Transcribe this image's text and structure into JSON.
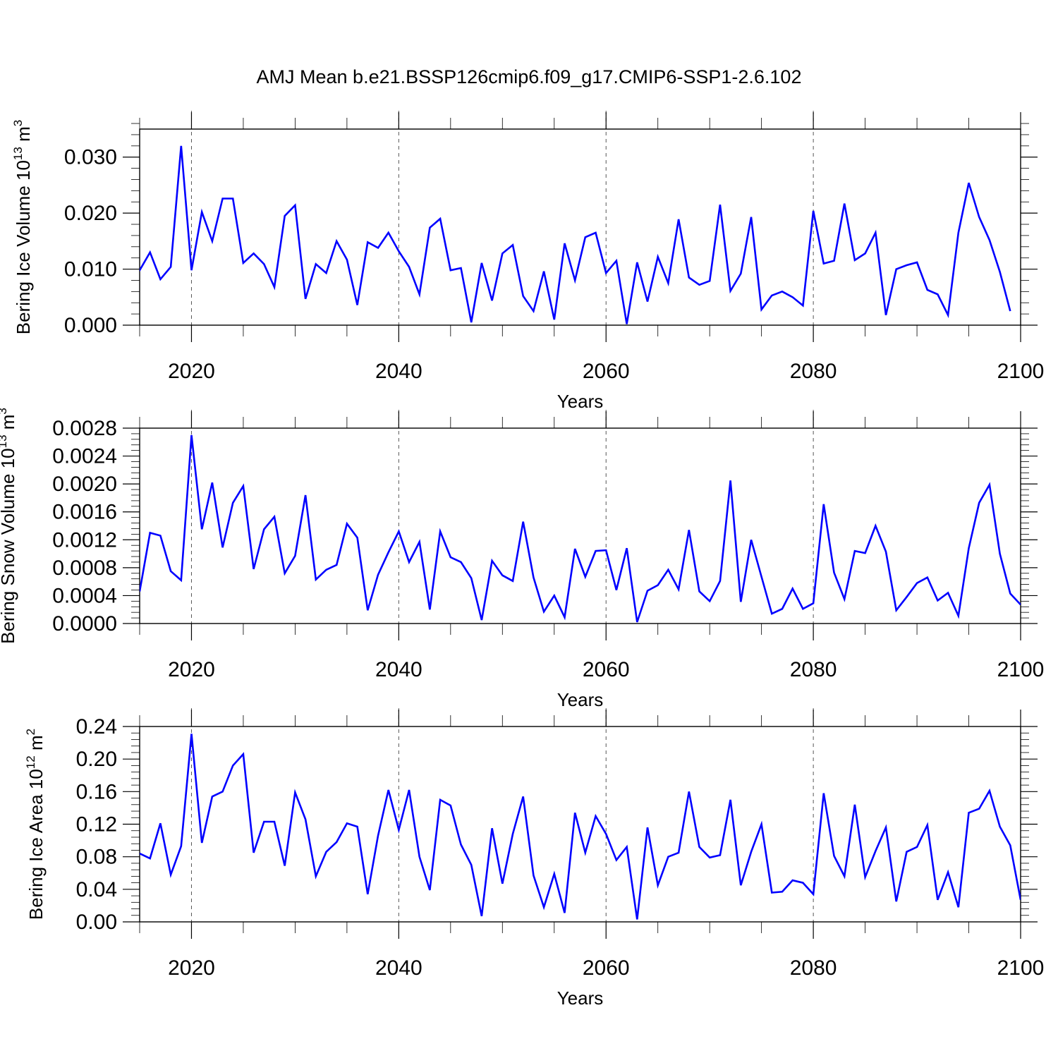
{
  "title": "AMJ Mean b.e21.BSSP126cmip6.f09_g17.CMIP6-SSP1-2.6.102",
  "colors": {
    "line": "#0000ff",
    "grid": "#555555",
    "axis": "#000000"
  },
  "chart_data": [
    {
      "type": "line",
      "id": "ice_volume",
      "ylabel": "Bering Ice Volume 10",
      "ylabel_exp": "13",
      "ylabel_unit": " m",
      "ylabel_unit_exp": "3",
      "xlabel": "Years",
      "xlim": [
        2015,
        2100
      ],
      "ylim": [
        0,
        0.035
      ],
      "xticks": [
        2020,
        2040,
        2060,
        2080,
        2100
      ],
      "xtick_labels": [
        "2020",
        "2040",
        "2060",
        "2080",
        "2100"
      ],
      "yticks": [
        0,
        0.01,
        0.02,
        0.03
      ],
      "ytick_labels": [
        "0.000",
        "0.010",
        "0.020",
        "0.030"
      ],
      "grid": "x-dashed",
      "x_start": 2014,
      "series": [
        {
          "values": [
            0.0096,
            0.0098,
            0.013,
            0.0082,
            0.0104,
            0.032,
            0.0098,
            0.0202,
            0.015,
            0.0226,
            0.0226,
            0.0111,
            0.0128,
            0.0109,
            0.0068,
            0.0195,
            0.0214,
            0.0047,
            0.0109,
            0.0093,
            0.015,
            0.0117,
            0.0036,
            0.0148,
            0.0138,
            0.0165,
            0.0132,
            0.0104,
            0.0055,
            0.0174,
            0.019,
            0.0098,
            0.0102,
            0.0005,
            0.0111,
            0.0044,
            0.0128,
            0.0143,
            0.0052,
            0.0025,
            0.0096,
            0.001,
            0.0146,
            0.008,
            0.0157,
            0.0165,
            0.0093,
            0.0115,
            0.0002,
            0.0112,
            0.0042,
            0.0122,
            0.0075,
            0.0189,
            0.0085,
            0.0072,
            0.0079,
            0.0215,
            0.0061,
            0.0092,
            0.0193,
            0.0028,
            0.0053,
            0.006,
            0.005,
            0.0035,
            0.0204,
            0.011,
            0.0115,
            0.0217,
            0.0116,
            0.0128,
            0.0165,
            0.0018,
            0.01,
            0.0107,
            0.0112,
            0.0063,
            0.0055,
            0.0018,
            0.0165,
            0.0254,
            0.0193,
            0.0152,
            0.0095,
            0.0025
          ]
        }
      ]
    },
    {
      "type": "line",
      "id": "snow_volume",
      "ylabel": "Bering Snow Volume 10",
      "ylabel_exp": "13",
      "ylabel_unit": " m",
      "ylabel_unit_exp": "3",
      "xlabel": "Years",
      "xlim": [
        2015,
        2100
      ],
      "ylim": [
        0,
        0.0028
      ],
      "xticks": [
        2020,
        2040,
        2060,
        2080,
        2100
      ],
      "xtick_labels": [
        "2020",
        "2040",
        "2060",
        "2080",
        "2100"
      ],
      "yticks": [
        0,
        0.0004,
        0.0008,
        0.0012,
        0.0016,
        0.002,
        0.0024,
        0.0028
      ],
      "ytick_labels": [
        "0.0000",
        "0.0004",
        "0.0008",
        "0.0012",
        "0.0016",
        "0.0020",
        "0.0024",
        "0.0028"
      ],
      "grid": "x-dashed",
      "x_start": 2015,
      "series": [
        {
          "values": [
            0.00046,
            0.0013,
            0.00126,
            0.00075,
            0.00062,
            0.0027,
            0.00135,
            0.00202,
            0.00109,
            0.00173,
            0.00197,
            0.00078,
            0.00135,
            0.00153,
            0.00072,
            0.00097,
            0.00184,
            0.00063,
            0.00077,
            0.00084,
            0.00143,
            0.00123,
            0.00019,
            0.0007,
            0.00102,
            0.00132,
            0.00088,
            0.00117,
            0.0002,
            0.00132,
            0.00095,
            0.00088,
            0.00065,
            5e-05,
            0.0009,
            0.00069,
            0.00061,
            0.00146,
            0.00066,
            0.00017,
            0.0004,
            9e-05,
            0.00107,
            0.00067,
            0.00104,
            0.00105,
            0.00048,
            0.00108,
            2e-05,
            0.00047,
            0.00055,
            0.00077,
            0.00049,
            0.00134,
            0.00046,
            0.00032,
            0.00061,
            0.00205,
            0.00031,
            0.0012,
            0.00067,
            0.00014,
            0.00021,
            0.0005,
            0.00021,
            0.00029,
            0.00171,
            0.00073,
            0.00035,
            0.00104,
            0.00101,
            0.0014,
            0.00103,
            0.00019,
            0.00038,
            0.00058,
            0.00066,
            0.00033,
            0.00044,
            0.00011,
            0.00108,
            0.00173,
            0.00199,
            0.001,
            0.00043,
            0.00027
          ]
        }
      ]
    },
    {
      "type": "line",
      "id": "ice_area",
      "ylabel": "Bering Ice Area 10",
      "ylabel_exp": "12",
      "ylabel_unit": " m",
      "ylabel_unit_exp": "2",
      "xlabel": "Years",
      "xlim": [
        2015,
        2100
      ],
      "ylim": [
        0,
        0.24
      ],
      "xticks": [
        2020,
        2040,
        2060,
        2080,
        2100
      ],
      "xtick_labels": [
        "2020",
        "2040",
        "2060",
        "2080",
        "2100"
      ],
      "yticks": [
        0,
        0.04,
        0.08,
        0.12,
        0.16,
        0.2,
        0.24
      ],
      "ytick_labels": [
        "0.00",
        "0.04",
        "0.08",
        "0.12",
        "0.16",
        "0.20",
        "0.24"
      ],
      "grid": "x-dashed",
      "x_start": 2015,
      "series": [
        {
          "values": [
            0.084,
            0.078,
            0.121,
            0.058,
            0.093,
            0.231,
            0.097,
            0.154,
            0.16,
            0.192,
            0.206,
            0.085,
            0.123,
            0.123,
            0.069,
            0.159,
            0.126,
            0.056,
            0.086,
            0.098,
            0.121,
            0.117,
            0.034,
            0.106,
            0.162,
            0.113,
            0.162,
            0.08,
            0.039,
            0.15,
            0.143,
            0.095,
            0.07,
            0.007,
            0.115,
            0.047,
            0.108,
            0.154,
            0.057,
            0.018,
            0.059,
            0.011,
            0.134,
            0.085,
            0.13,
            0.108,
            0.076,
            0.092,
            0.003,
            0.116,
            0.045,
            0.08,
            0.085,
            0.16,
            0.092,
            0.079,
            0.082,
            0.15,
            0.045,
            0.086,
            0.12,
            0.036,
            0.037,
            0.051,
            0.048,
            0.034,
            0.158,
            0.081,
            0.056,
            0.144,
            0.055,
            0.087,
            0.116,
            0.025,
            0.086,
            0.092,
            0.119,
            0.027,
            0.061,
            0.018,
            0.134,
            0.139,
            0.161,
            0.117,
            0.094,
            0.027
          ]
        }
      ]
    }
  ]
}
